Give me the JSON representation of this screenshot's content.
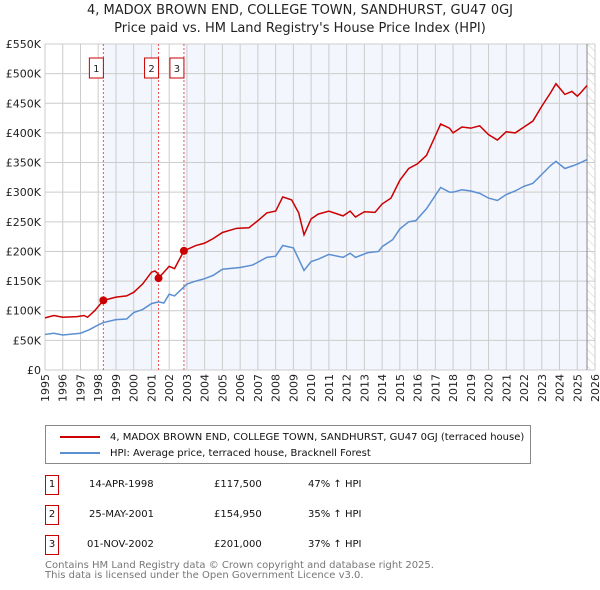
{
  "title_line1": "4, MADOX BROWN END, COLLEGE TOWN, SANDHURST, GU47 0GJ",
  "title_line2": "Price paid vs. HM Land Registry's House Price Index (HPI)",
  "colors": {
    "property": "#cc0000",
    "hpi": "#5b8fd0",
    "shade": "#f3f6fd",
    "grid": "#cccccc"
  },
  "chart_data": {
    "type": "line",
    "xlim": [
      1995,
      2026
    ],
    "ylim": [
      0,
      550000
    ],
    "x_ticks": [
      "1995",
      "1996",
      "1997",
      "1998",
      "1999",
      "2000",
      "2001",
      "2002",
      "2003",
      "2004",
      "2005",
      "2006",
      "2007",
      "2008",
      "2009",
      "2010",
      "2011",
      "2012",
      "2013",
      "2014",
      "2015",
      "2016",
      "2017",
      "2018",
      "2019",
      "2020",
      "2021",
      "2022",
      "2023",
      "2024",
      "2025",
      "2026"
    ],
    "y_ticks": [
      {
        "v": 0,
        "l": "£0"
      },
      {
        "v": 50000,
        "l": "£50K"
      },
      {
        "v": 100000,
        "l": "£100K"
      },
      {
        "v": 150000,
        "l": "£150K"
      },
      {
        "v": 200000,
        "l": "£200K"
      },
      {
        "v": 250000,
        "l": "£250K"
      },
      {
        "v": 300000,
        "l": "£300K"
      },
      {
        "v": 350000,
        "l": "£350K"
      },
      {
        "v": 400000,
        "l": "£400K"
      },
      {
        "v": 450000,
        "l": "£450K"
      },
      {
        "v": 500000,
        "l": "£500K"
      },
      {
        "v": 550000,
        "l": "£550K"
      }
    ],
    "grid": true,
    "data_end": 2025.55,
    "series": [
      {
        "name": "4, MADOX BROWN END, COLLEGE TOWN, SANDHURST, GU47 0GJ (terraced house)",
        "color": "#cc0000",
        "points": [
          [
            1995,
            88
          ],
          [
            1995.5,
            92
          ],
          [
            1996,
            89
          ],
          [
            1996.8,
            90
          ],
          [
            1997.2,
            92
          ],
          [
            1997.4,
            89
          ],
          [
            1997.8,
            100
          ],
          [
            1998.29,
            117.5
          ],
          [
            1999,
            123
          ],
          [
            1999.6,
            125
          ],
          [
            2000,
            131
          ],
          [
            2000.5,
            145
          ],
          [
            2001,
            165
          ],
          [
            2001.2,
            167
          ],
          [
            2001.35,
            163
          ],
          [
            2001.4,
            155
          ],
          [
            2001.7,
            165
          ],
          [
            2002,
            175
          ],
          [
            2002.3,
            171
          ],
          [
            2002.83,
            201
          ],
          [
            2003.5,
            210
          ],
          [
            2004,
            214
          ],
          [
            2004.5,
            222
          ],
          [
            2005,
            232
          ],
          [
            2005.8,
            239
          ],
          [
            2006.5,
            240
          ],
          [
            2007,
            252
          ],
          [
            2007.5,
            265
          ],
          [
            2008,
            268
          ],
          [
            2008.4,
            292
          ],
          [
            2008.9,
            287
          ],
          [
            2009.3,
            265
          ],
          [
            2009.6,
            228
          ],
          [
            2010,
            255
          ],
          [
            2010.4,
            263
          ],
          [
            2011,
            268
          ],
          [
            2011.8,
            260
          ],
          [
            2012.2,
            268
          ],
          [
            2012.5,
            258
          ],
          [
            2013,
            267
          ],
          [
            2013.6,
            266
          ],
          [
            2014,
            280
          ],
          [
            2014.5,
            290
          ],
          [
            2015,
            320
          ],
          [
            2015.5,
            340
          ],
          [
            2016,
            348
          ],
          [
            2016.5,
            362
          ],
          [
            2017,
            395
          ],
          [
            2017.3,
            415
          ],
          [
            2017.8,
            408
          ],
          [
            2018,
            400
          ],
          [
            2018.5,
            410
          ],
          [
            2019,
            408
          ],
          [
            2019.5,
            412
          ],
          [
            2020,
            397
          ],
          [
            2020.5,
            388
          ],
          [
            2021,
            402
          ],
          [
            2021.5,
            400
          ],
          [
            2022,
            410
          ],
          [
            2022.5,
            420
          ],
          [
            2023,
            445
          ],
          [
            2023.5,
            468
          ],
          [
            2023.8,
            483
          ],
          [
            2024.3,
            465
          ],
          [
            2024.7,
            470
          ],
          [
            2025,
            462
          ],
          [
            2025.2,
            468
          ],
          [
            2025.55,
            480
          ]
        ]
      },
      {
        "name": "HPI: Average price, terraced house, Bracknell Forest",
        "color": "#5b8fd0",
        "points": [
          [
            1995,
            60
          ],
          [
            1995.5,
            62
          ],
          [
            1996,
            59
          ],
          [
            1997,
            62
          ],
          [
            1997.5,
            68
          ],
          [
            1998,
            76
          ],
          [
            1998.29,
            80
          ],
          [
            1999,
            85
          ],
          [
            1999.6,
            86
          ],
          [
            2000,
            97
          ],
          [
            2000.5,
            102
          ],
          [
            2001,
            112
          ],
          [
            2001.4,
            115
          ],
          [
            2001.7,
            113
          ],
          [
            2002,
            128
          ],
          [
            2002.3,
            125
          ],
          [
            2003,
            145
          ],
          [
            2003.5,
            150
          ],
          [
            2004,
            154
          ],
          [
            2004.5,
            160
          ],
          [
            2005,
            170
          ],
          [
            2006,
            173
          ],
          [
            2006.7,
            177
          ],
          [
            2007.5,
            190
          ],
          [
            2008,
            192
          ],
          [
            2008.4,
            210
          ],
          [
            2009,
            206
          ],
          [
            2009.6,
            168
          ],
          [
            2010,
            183
          ],
          [
            2010.4,
            187
          ],
          [
            2011,
            195
          ],
          [
            2011.8,
            190
          ],
          [
            2012.2,
            197
          ],
          [
            2012.5,
            190
          ],
          [
            2013.2,
            198
          ],
          [
            2013.8,
            200
          ],
          [
            2014,
            208
          ],
          [
            2014.6,
            220
          ],
          [
            2015,
            238
          ],
          [
            2015.5,
            250
          ],
          [
            2015.9,
            252
          ],
          [
            2016.5,
            272
          ],
          [
            2017.3,
            308
          ],
          [
            2017.8,
            300
          ],
          [
            2018,
            300
          ],
          [
            2018.5,
            304
          ],
          [
            2019,
            302
          ],
          [
            2019.5,
            298
          ],
          [
            2020,
            290
          ],
          [
            2020.5,
            286
          ],
          [
            2021,
            296
          ],
          [
            2021.5,
            302
          ],
          [
            2022,
            310
          ],
          [
            2022.5,
            315
          ],
          [
            2023,
            330
          ],
          [
            2023.5,
            345
          ],
          [
            2023.8,
            352
          ],
          [
            2024.3,
            340
          ],
          [
            2024.8,
            345
          ],
          [
            2025.2,
            350
          ],
          [
            2025.55,
            355
          ]
        ]
      }
    ],
    "sales": [
      {
        "id": "1",
        "x": 1998.29,
        "y": 117.5,
        "date": "14-APR-1998",
        "price": "£117,500",
        "hpi": "47% ↑ HPI"
      },
      {
        "id": "2",
        "x": 2001.4,
        "y": 154.95,
        "date": "25-MAY-2001",
        "price": "£154,950",
        "hpi": "35% ↑ HPI"
      },
      {
        "id": "3",
        "x": 2002.83,
        "y": 201,
        "date": "01-NOV-2002",
        "price": "£201,000",
        "hpi": "37% ↑ HPI"
      }
    ]
  },
  "legend": {
    "property": "4, MADOX BROWN END, COLLEGE TOWN, SANDHURST, GU47 0GJ (terraced house)",
    "hpi": "HPI: Average price, terraced house, Bracknell Forest"
  },
  "footer": {
    "line1": "Contains HM Land Registry data © Crown copyright and database right 2025.",
    "line2": "This data is licensed under the Open Government Licence v3.0."
  }
}
